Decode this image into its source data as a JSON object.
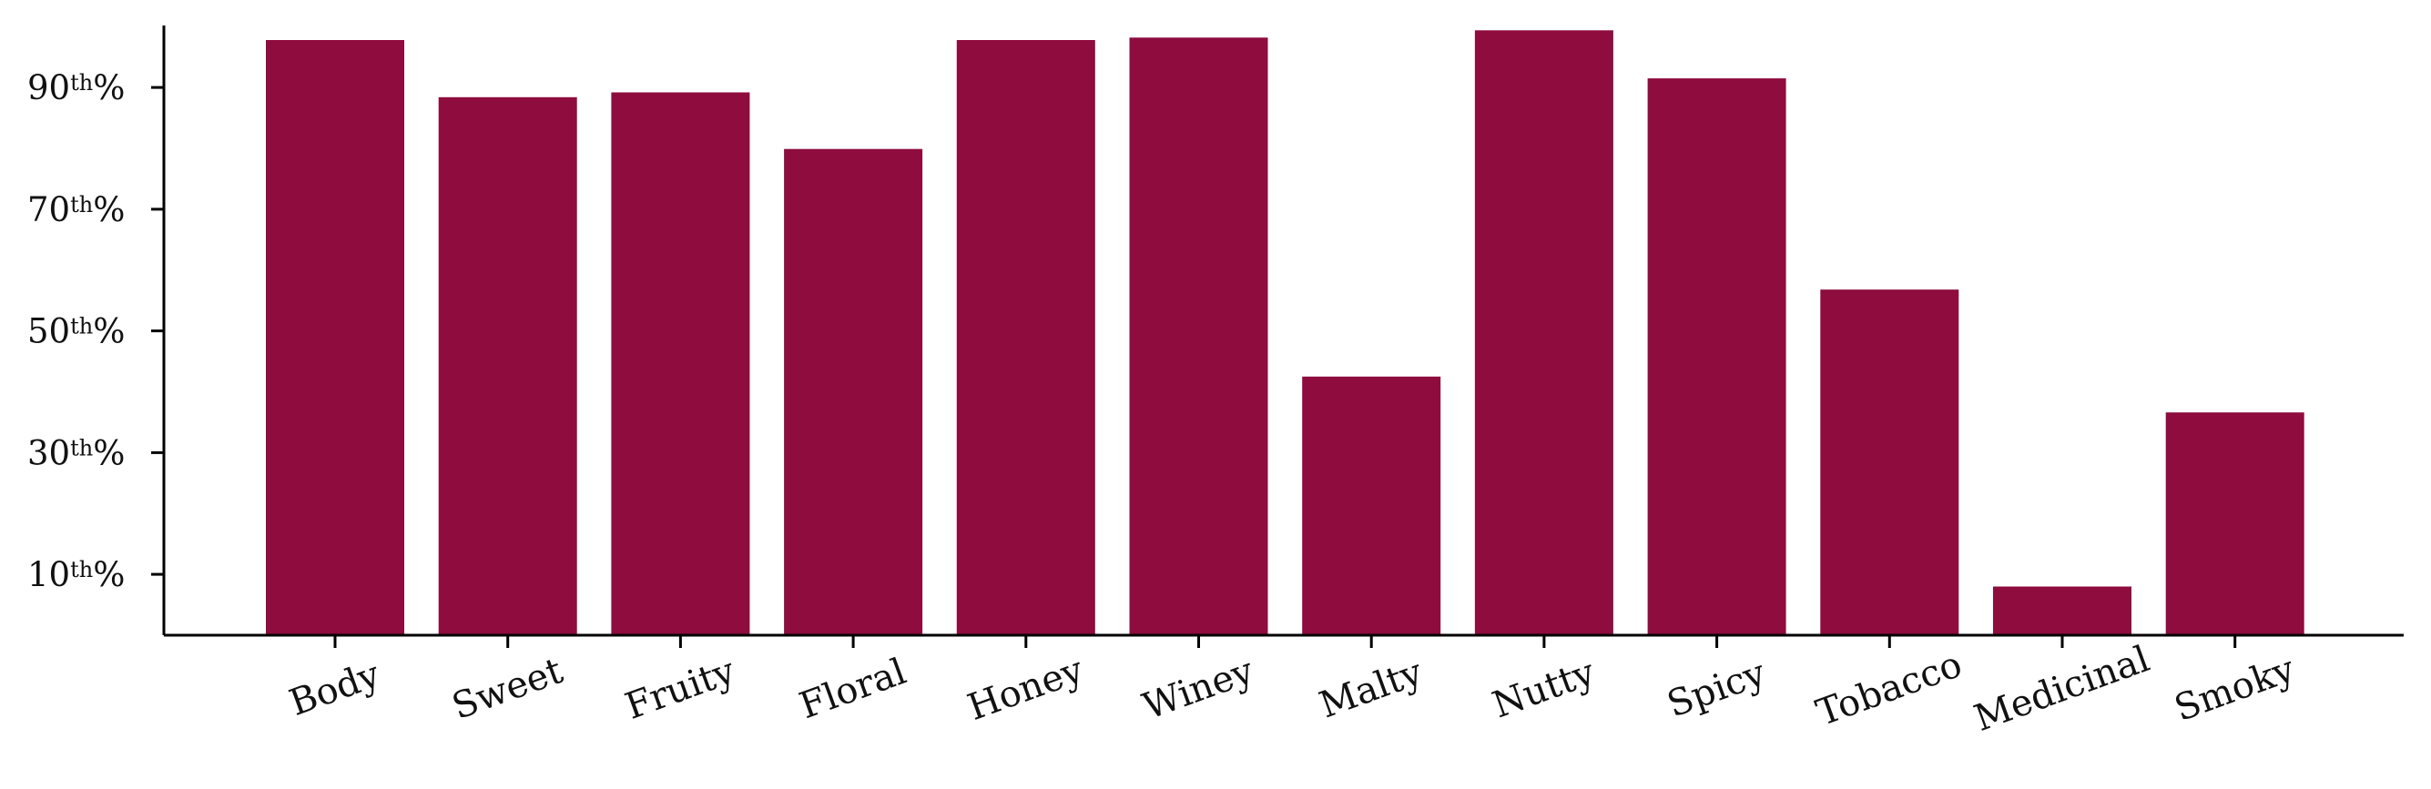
{
  "chart_data": {
    "type": "bar",
    "title": "",
    "xlabel": "",
    "ylabel": "",
    "categories": [
      "Body",
      "Sweet",
      "Fruity",
      "Floral",
      "Honey",
      "Winey",
      "Malty",
      "Nutty",
      "Spicy",
      "Tobacco",
      "Medicinal",
      "Smoky"
    ],
    "values": [
      97.8,
      88.4,
      89.2,
      79.9,
      97.8,
      98.2,
      42.5,
      99.4,
      91.5,
      56.8,
      8.0,
      36.6
    ],
    "ylim": [
      0,
      100
    ],
    "yticks": [
      {
        "value": 10,
        "num": "10",
        "sup": "th",
        "suffix": "%"
      },
      {
        "value": 30,
        "num": "30",
        "sup": "th",
        "suffix": "%"
      },
      {
        "value": 50,
        "num": "50",
        "sup": "th",
        "suffix": "%"
      },
      {
        "value": 70,
        "num": "70",
        "sup": "th",
        "suffix": "%"
      },
      {
        "value": 90,
        "num": "90",
        "sup": "th",
        "suffix": "%"
      }
    ],
    "bar_color": "#8e0c3e",
    "grid": false,
    "legend": "none",
    "xtick_rotation_deg": -20
  }
}
